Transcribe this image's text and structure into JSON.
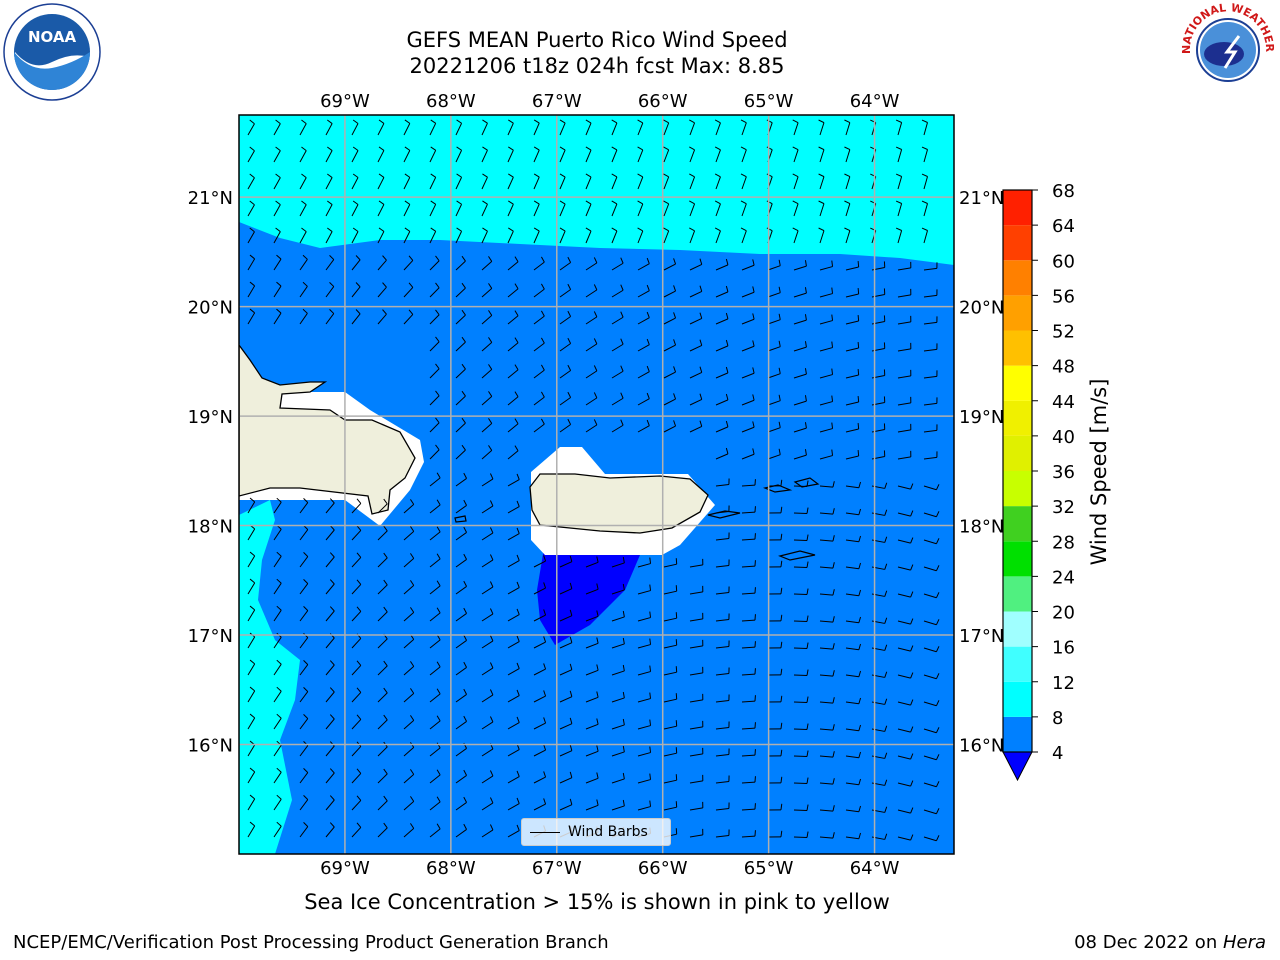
{
  "title": {
    "line1": "GEFS MEAN Puerto Rico Wind Speed",
    "line2": "20221206 t18z 024h fcst   Max: 8.85"
  },
  "subtitle": "Sea Ice Concentration > 15% is shown in pink to yellow",
  "footer": {
    "left": "NCEP/EMC/Verification Post Processing Product Generation Branch",
    "right_prefix": "08 Dec 2022 on ",
    "right_italic": "Hera"
  },
  "legend": {
    "label": "Wind Barbs"
  },
  "map": {
    "lon_range": [
      -70.0,
      -63.25
    ],
    "lat_range": [
      15.0,
      21.75
    ],
    "lon_ticks": [
      {
        "value": -69,
        "label": "69°W"
      },
      {
        "value": -68,
        "label": "68°W"
      },
      {
        "value": -67,
        "label": "67°W"
      },
      {
        "value": -66,
        "label": "66°W"
      },
      {
        "value": -65,
        "label": "65°W"
      },
      {
        "value": -64,
        "label": "64°W"
      }
    ],
    "lat_ticks": [
      {
        "value": 16,
        "label": "16°N"
      },
      {
        "value": 17,
        "label": "17°N"
      },
      {
        "value": 18,
        "label": "18°N"
      },
      {
        "value": 19,
        "label": "19°N"
      },
      {
        "value": 20,
        "label": "20°N"
      },
      {
        "value": 21,
        "label": "21°N"
      }
    ],
    "grid": true,
    "colors": {
      "band_4_8": "#0080ff",
      "band_8_12": "#00ffff",
      "band_lt4": "#0000ff",
      "land": "#efefdc",
      "masked": "#ffffff",
      "grid": "#b0b0b0"
    }
  },
  "colorbar": {
    "label": "Wind Speed [m/s]",
    "ticks": [
      "4",
      "8",
      "12",
      "16",
      "20",
      "24",
      "28",
      "32",
      "36",
      "40",
      "44",
      "48",
      "52",
      "56",
      "60",
      "64",
      "68"
    ],
    "under_color": "#0000ff",
    "colors": [
      "#0080ff",
      "#00ffff",
      "#40ffff",
      "#a0ffff",
      "#50f080",
      "#00e000",
      "#40d020",
      "#c8ff00",
      "#e0f000",
      "#f0f000",
      "#ffff00",
      "#ffc000",
      "#ffa000",
      "#ff8000",
      "#ff4000",
      "#ff2000",
      "#ff0000"
    ]
  },
  "logos": {
    "noaa": "NOAA",
    "nws_text": "NATIONAL WEATHER SERVICE"
  }
}
